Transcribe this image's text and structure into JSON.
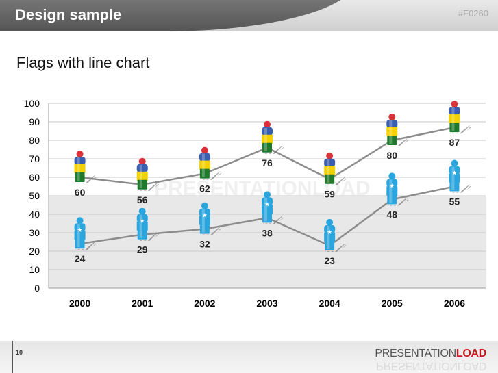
{
  "header": {
    "title": "Design sample",
    "code": "#F0260"
  },
  "subtitle": "Flags with line chart",
  "watermark": "PRESENTATIONLOAD",
  "footer": {
    "page": "10",
    "brand_a": "PRESENTATION",
    "brand_b": "LOAD"
  },
  "colors": {
    "line": "#8c8c8c",
    "figure_blue": "#2aa5dd",
    "flag_red": "#d8333b",
    "flag_blue": "#3b5fb0",
    "flag_yellow": "#f4d100",
    "flag_green": "#1f7a2c"
  },
  "chart_data": {
    "type": "line",
    "categories": [
      "2000",
      "2001",
      "2002",
      "2003",
      "2004",
      "2005",
      "2006"
    ],
    "series": [
      {
        "values": [
          60,
          56,
          62,
          76,
          59,
          80,
          87
        ],
        "icon": "flag-figure-icon"
      },
      {
        "values": [
          24,
          29,
          32,
          38,
          23,
          48,
          55
        ],
        "icon": "blue-figure-icon"
      }
    ],
    "ylim": [
      0,
      100
    ],
    "yticks": [
      "0",
      "10",
      "20",
      "30",
      "40",
      "50",
      "60",
      "70",
      "80",
      "90",
      "100"
    ],
    "grid": true,
    "shaded_band": [
      0,
      50
    ]
  }
}
